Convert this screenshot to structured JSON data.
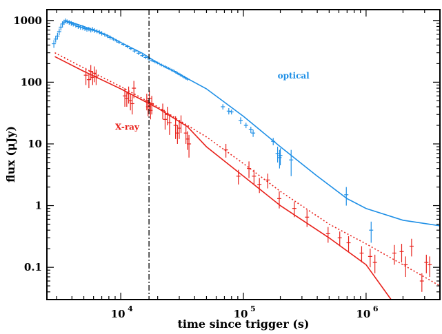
{
  "chart_data": {
    "type": "scatter",
    "xscale": "log",
    "yscale": "log",
    "xlabel": "time since trigger (s)",
    "ylabel": "flux (μJy)",
    "xlim": [
      2500,
      4000000
    ],
    "ylim": [
      0.03,
      1500
    ],
    "x_ticks": [
      {
        "base": "10",
        "exp": "4",
        "value": 10000
      },
      {
        "base": "10",
        "exp": "5",
        "value": 100000
      },
      {
        "base": "10",
        "exp": "6",
        "value": 1000000
      }
    ],
    "y_ticks": [
      {
        "label": "0.1",
        "value": 0.1
      },
      {
        "label": "1",
        "value": 1
      },
      {
        "label": "10",
        "value": 10
      },
      {
        "label": "100",
        "value": 100
      },
      {
        "label": "1000",
        "value": 1000
      }
    ],
    "vertical_line_x": 17000,
    "series": [
      {
        "name": "optical",
        "color": "#1e8fe6",
        "points": [
          [
            2850,
            420,
            60
          ],
          [
            2950,
            500,
            60
          ],
          [
            3050,
            560,
            70
          ],
          [
            3150,
            660,
            80
          ],
          [
            3250,
            780,
            90
          ],
          [
            3350,
            880,
            90
          ],
          [
            3450,
            940,
            90
          ],
          [
            3550,
            990,
            90
          ],
          [
            3650,
            960,
            80
          ],
          [
            3800,
            930,
            80
          ],
          [
            3950,
            900,
            80
          ],
          [
            4100,
            870,
            70
          ],
          [
            4300,
            840,
            70
          ],
          [
            4500,
            800,
            70
          ],
          [
            4700,
            780,
            70
          ],
          [
            4900,
            770,
            70
          ],
          [
            5100,
            740,
            60
          ],
          [
            5300,
            720,
            60
          ],
          [
            5500,
            730,
            60
          ],
          [
            5700,
            700,
            60
          ],
          [
            5900,
            720,
            60
          ],
          [
            6100,
            690,
            60
          ],
          [
            6400,
            670,
            50
          ],
          [
            6700,
            650,
            50
          ],
          [
            7000,
            620,
            50
          ],
          [
            7400,
            590,
            40
          ],
          [
            7800,
            560,
            40
          ],
          [
            8200,
            530,
            40
          ],
          [
            8700,
            500,
            30
          ],
          [
            9200,
            470,
            30
          ],
          [
            9700,
            445,
            30
          ],
          [
            10500,
            410,
            25
          ],
          [
            11300,
            380,
            25
          ],
          [
            12100,
            350,
            20
          ],
          [
            13000,
            320,
            20
          ],
          [
            14000,
            295,
            20
          ],
          [
            15000,
            270,
            15
          ],
          [
            16000,
            252,
            15
          ],
          [
            17000,
            238,
            15
          ],
          [
            18000,
            225,
            12
          ],
          [
            19000,
            215,
            12
          ],
          [
            20000,
            205,
            10
          ],
          [
            21500,
            190,
            10
          ],
          [
            23000,
            178,
            10
          ],
          [
            24500,
            168,
            8
          ],
          [
            26000,
            158,
            8
          ],
          [
            27500,
            150,
            8
          ],
          [
            29000,
            140,
            7
          ],
          [
            30500,
            132,
            7
          ],
          [
            32000,
            125,
            6
          ],
          [
            33500,
            118,
            6
          ],
          [
            35000,
            112,
            6
          ],
          [
            68000,
            40,
            4
          ],
          [
            76000,
            34,
            4
          ],
          [
            80000,
            33,
            3
          ],
          [
            95000,
            24,
            3
          ],
          [
            105000,
            20,
            2
          ],
          [
            115000,
            17,
            2
          ],
          [
            120000,
            15,
            2
          ],
          [
            175000,
            11,
            1.5
          ],
          [
            190000,
            7,
            2
          ],
          [
            197000,
            6,
            2
          ],
          [
            200000,
            6.5,
            2
          ],
          [
            245000,
            5.5,
            2.5
          ],
          [
            690000,
            1.5,
            0.5
          ],
          [
            1100000,
            0.4,
            0.15
          ]
        ]
      },
      {
        "name": "X-ray",
        "color": "#e8201a",
        "points": [
          [
            5200,
            130,
            40
          ],
          [
            5500,
            110,
            30
          ],
          [
            5700,
            150,
            40
          ],
          [
            5900,
            120,
            30
          ],
          [
            6100,
            140,
            40
          ],
          [
            6300,
            125,
            35
          ],
          [
            10800,
            60,
            20
          ],
          [
            11200,
            55,
            15
          ],
          [
            11600,
            65,
            20
          ],
          [
            12000,
            50,
            15
          ],
          [
            12400,
            45,
            15
          ],
          [
            12800,
            80,
            25
          ],
          [
            16300,
            50,
            15
          ],
          [
            16700,
            40,
            12
          ],
          [
            17100,
            55,
            18
          ],
          [
            17500,
            35,
            10
          ],
          [
            17900,
            45,
            15
          ],
          [
            22000,
            35,
            10
          ],
          [
            23000,
            25,
            8
          ],
          [
            24000,
            30,
            10
          ],
          [
            25000,
            22,
            8
          ],
          [
            28000,
            20,
            8
          ],
          [
            29000,
            15,
            5
          ],
          [
            30000,
            18,
            6
          ],
          [
            31000,
            22,
            7
          ],
          [
            34000,
            15,
            5
          ],
          [
            35000,
            12,
            4
          ],
          [
            36000,
            10,
            4
          ],
          [
            72000,
            8,
            2
          ],
          [
            91000,
            3,
            0.8
          ],
          [
            111000,
            4,
            1.2
          ],
          [
            122000,
            3,
            0.8
          ],
          [
            135000,
            2.2,
            0.6
          ],
          [
            158000,
            2.6,
            0.7
          ],
          [
            196000,
            1.3,
            0.4
          ],
          [
            260000,
            0.9,
            0.25
          ],
          [
            330000,
            0.65,
            0.2
          ],
          [
            490000,
            0.35,
            0.1
          ],
          [
            610000,
            0.3,
            0.08
          ],
          [
            720000,
            0.25,
            0.07
          ],
          [
            920000,
            0.17,
            0.05
          ],
          [
            1080000,
            0.15,
            0.05
          ],
          [
            1180000,
            0.12,
            0.04
          ],
          [
            1700000,
            0.17,
            0.06
          ],
          [
            1950000,
            0.18,
            0.06
          ],
          [
            2100000,
            0.11,
            0.04
          ],
          [
            2350000,
            0.22,
            0.07
          ],
          [
            2850000,
            0.06,
            0.02
          ],
          [
            3100000,
            0.12,
            0.04
          ],
          [
            3300000,
            0.11,
            0.04
          ]
        ]
      }
    ],
    "model_curves": [
      {
        "series": "optical",
        "style": "solid",
        "color": "#1e8fe6",
        "points": [
          [
            3500,
            1000
          ],
          [
            4000,
            930
          ],
          [
            5000,
            800
          ],
          [
            6000,
            700
          ],
          [
            8000,
            560
          ],
          [
            10000,
            440
          ],
          [
            15000,
            295
          ],
          [
            20000,
            205
          ],
          [
            30000,
            135
          ],
          [
            50000,
            78
          ],
          [
            100000,
            28
          ],
          [
            200000,
            9
          ],
          [
            400000,
            3
          ],
          [
            700000,
            1.3
          ],
          [
            1000000,
            0.9
          ],
          [
            2000000,
            0.58
          ],
          [
            4000000,
            0.47
          ]
        ]
      },
      {
        "series": "X-ray",
        "style": "solid",
        "color": "#e8201a",
        "points": [
          [
            2900,
            260
          ],
          [
            5000,
            150
          ],
          [
            10000,
            78
          ],
          [
            20000,
            38
          ],
          [
            35000,
            19
          ],
          [
            50000,
            9
          ],
          [
            100000,
            3
          ],
          [
            200000,
            1
          ],
          [
            500000,
            0.3
          ],
          [
            1000000,
            0.11
          ],
          [
            1600000,
            0.03
          ]
        ]
      },
      {
        "series": "X-ray",
        "style": "dotted",
        "color": "#e8201a",
        "points": [
          [
            2900,
            300
          ],
          [
            5000,
            170
          ],
          [
            10000,
            85
          ],
          [
            20000,
            40
          ],
          [
            30000,
            24
          ],
          [
            50000,
            13
          ],
          [
            100000,
            4.8
          ],
          [
            200000,
            1.7
          ],
          [
            500000,
            0.5
          ],
          [
            1000000,
            0.24
          ],
          [
            2000000,
            0.11
          ],
          [
            4000000,
            0.05
          ]
        ]
      }
    ],
    "annotations": [
      {
        "text": "optical",
        "color": "#1e8fe6",
        "x": 190000,
        "y": 115
      },
      {
        "text": "X-ray",
        "color": "#e8201a",
        "x": 9000,
        "y": 17
      }
    ]
  }
}
